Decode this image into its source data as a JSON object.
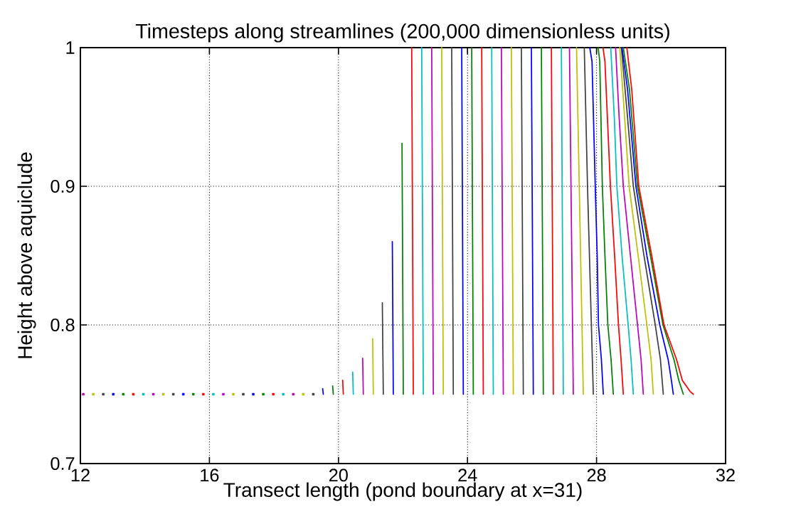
{
  "chart_data": {
    "type": "line",
    "title": "Timesteps along streamlines (200,000 dimensionless units)",
    "xlabel": "Transect length (pond boundary at x=31)",
    "ylabel": "Height above aquiclude",
    "xlim": [
      12,
      32
    ],
    "ylim": [
      0.7,
      1
    ],
    "xticks": [
      12,
      16,
      20,
      24,
      28,
      32
    ],
    "yticks": [
      0.7,
      0.8,
      0.9,
      1
    ],
    "grid": true,
    "line_style": "solid",
    "series": [
      {
        "type": "scatter",
        "marker": "square",
        "x": [
          12.09,
          12.4,
          12.71,
          13.02,
          13.33,
          13.64,
          13.95,
          14.26,
          14.57,
          14.88,
          15.19,
          15.5,
          15.81,
          16.12,
          16.43,
          16.74,
          17.05,
          17.36,
          17.67,
          17.98,
          18.29,
          18.6,
          18.91,
          19.22
        ],
        "values": [
          0.75,
          0.75,
          0.75,
          0.75,
          0.75,
          0.75,
          0.75,
          0.75,
          0.75,
          0.75,
          0.75,
          0.75,
          0.75,
          0.75,
          0.75,
          0.75,
          0.75,
          0.75,
          0.75,
          0.75,
          0.75,
          0.75,
          0.75,
          0.75
        ],
        "colors": [
          "#bf00bf",
          "#bfbf00",
          "#404040",
          "#0000ff",
          "#008000",
          "#ff0000",
          "#00bfbf",
          "#bf00bf",
          "#bfbf00",
          "#404040",
          "#0000ff",
          "#008000",
          "#ff0000",
          "#00bfbf",
          "#bf00bf",
          "#bfbf00",
          "#404040",
          "#0000ff",
          "#008000",
          "#ff0000",
          "#00bfbf",
          "#bf00bf",
          "#bfbf00",
          "#404040"
        ]
      },
      {
        "color": "#0000ff",
        "x": [
          19.53,
          19.51
        ],
        "values": [
          0.75,
          0.754
        ]
      },
      {
        "color": "#008000",
        "x": [
          19.84,
          19.82
        ],
        "values": [
          0.75,
          0.756
        ]
      },
      {
        "color": "#ff0000",
        "x": [
          20.15,
          20.13
        ],
        "values": [
          0.75,
          0.76
        ]
      },
      {
        "color": "#00bfbf",
        "x": [
          20.46,
          20.44
        ],
        "values": [
          0.75,
          0.766
        ]
      },
      {
        "color": "#bf00bf",
        "x": [
          20.77,
          20.75
        ],
        "values": [
          0.75,
          0.776
        ]
      },
      {
        "color": "#bfbf00",
        "x": [
          21.08,
          21.06
        ],
        "values": [
          0.75,
          0.79
        ]
      },
      {
        "color": "#404040",
        "x": [
          21.39,
          21.36
        ],
        "values": [
          0.75,
          0.816
        ]
      },
      {
        "color": "#0000ff",
        "x": [
          21.7,
          21.67
        ],
        "values": [
          0.75,
          0.86
        ]
      },
      {
        "color": "#008000",
        "x": [
          22.01,
          21.97
        ],
        "values": [
          0.75,
          0.931
        ]
      },
      {
        "color": "#ff0000",
        "x": [
          22.32,
          22.27
        ],
        "values": [
          0.75,
          1
        ]
      },
      {
        "color": "#00bfbf",
        "x": [
          22.63,
          22.58
        ],
        "values": [
          0.75,
          1
        ]
      },
      {
        "color": "#bf00bf",
        "x": [
          22.94,
          22.89
        ],
        "values": [
          0.75,
          1
        ]
      },
      {
        "color": "#bfbf00",
        "x": [
          23.25,
          23.2
        ],
        "values": [
          0.75,
          1
        ]
      },
      {
        "color": "#404040",
        "x": [
          23.56,
          23.51
        ],
        "values": [
          0.75,
          1
        ]
      },
      {
        "color": "#0000ff",
        "x": [
          23.87,
          23.82
        ],
        "values": [
          0.75,
          1
        ]
      },
      {
        "color": "#008000",
        "x": [
          24.18,
          24.13
        ],
        "values": [
          0.75,
          1
        ]
      },
      {
        "color": "#ff0000",
        "x": [
          24.49,
          24.44
        ],
        "values": [
          0.75,
          1
        ]
      },
      {
        "color": "#00bfbf",
        "x": [
          24.8,
          24.75
        ],
        "values": [
          0.75,
          1
        ]
      },
      {
        "color": "#bf00bf",
        "x": [
          25.11,
          25.05
        ],
        "values": [
          0.75,
          1
        ]
      },
      {
        "color": "#bfbf00",
        "x": [
          25.42,
          25.36
        ],
        "values": [
          0.75,
          1
        ]
      },
      {
        "color": "#404040",
        "x": [
          25.73,
          25.67
        ],
        "values": [
          0.75,
          1
        ]
      },
      {
        "color": "#0000ff",
        "x": [
          26.04,
          25.98
        ],
        "values": [
          0.75,
          1
        ]
      },
      {
        "color": "#008000",
        "x": [
          26.35,
          26.29
        ],
        "values": [
          0.75,
          1
        ]
      },
      {
        "color": "#ff0000",
        "x": [
          26.66,
          26.6
        ],
        "values": [
          0.75,
          1
        ]
      },
      {
        "color": "#00bfbf",
        "x": [
          26.97,
          26.91
        ],
        "values": [
          0.75,
          1
        ]
      },
      {
        "color": "#bf00bf",
        "x": [
          27.28,
          27.16
        ],
        "values": [
          0.75,
          1
        ]
      },
      {
        "color": "#bfbf00",
        "x": [
          27.59,
          27.38
        ],
        "values": [
          0.75,
          1
        ]
      },
      {
        "color": "#404040",
        "x": [
          27.9,
          27.84,
          27.78,
          27.72,
          27.62
        ],
        "values": [
          0.75,
          0.8,
          0.85,
          0.9,
          1
        ]
      },
      {
        "color": "#0000ff",
        "x": [
          28.21,
          28.15,
          28.06,
          28.02,
          27.96,
          27.86,
          27.79
        ],
        "values": [
          0.75,
          0.775,
          0.8,
          0.85,
          0.9,
          0.99,
          1
        ]
      },
      {
        "color": "#008000",
        "x": [
          28.52,
          28.45,
          28.35,
          28.26,
          28.18,
          28.1,
          28.05
        ],
        "values": [
          0.75,
          0.775,
          0.8,
          0.85,
          0.9,
          0.99,
          1
        ]
      },
      {
        "color": "#ff0000",
        "x": [
          28.83,
          28.76,
          28.68,
          28.56,
          28.43,
          28.26,
          28.2
        ],
        "values": [
          0.75,
          0.775,
          0.8,
          0.85,
          0.9,
          0.99,
          1
        ]
      },
      {
        "color": "#00bfbf",
        "x": [
          29.14,
          29.07,
          28.98,
          28.79,
          28.63,
          28.55,
          28.44
        ],
        "values": [
          0.75,
          0.775,
          0.8,
          0.85,
          0.9,
          0.95,
          1
        ]
      },
      {
        "color": "#bf00bf",
        "x": [
          29.45,
          29.38,
          29.27,
          29.05,
          28.83,
          28.7,
          28.59
        ],
        "values": [
          0.75,
          0.775,
          0.8,
          0.85,
          0.9,
          0.95,
          1
        ]
      },
      {
        "color": "#bfbf00",
        "x": [
          29.76,
          29.69,
          29.56,
          29.29,
          29.01,
          28.87,
          28.72
        ],
        "values": [
          0.75,
          0.775,
          0.8,
          0.85,
          0.9,
          0.95,
          1
        ]
      },
      {
        "color": "#404040",
        "x": [
          30.07,
          29.98,
          29.82,
          29.47,
          29.14,
          28.96,
          28.77
        ],
        "values": [
          0.75,
          0.775,
          0.8,
          0.85,
          0.9,
          0.95,
          1
        ]
      },
      {
        "color": "#0000ff",
        "x": [
          30.38,
          30.32,
          30.22,
          29.96,
          29.56,
          29.22,
          28.96,
          28.79
        ],
        "values": [
          0.75,
          0.76,
          0.775,
          0.8,
          0.85,
          0.9,
          0.97,
          1
        ]
      },
      {
        "color": "#008000",
        "x": [
          30.69,
          30.55,
          30.4,
          30.06,
          29.67,
          29.27,
          29.02,
          28.83
        ],
        "values": [
          0.75,
          0.76,
          0.775,
          0.8,
          0.85,
          0.9,
          0.97,
          1
        ]
      },
      {
        "color": "#ff0000",
        "x": [
          31.0,
          30.9,
          30.66,
          30.48,
          30.09,
          29.71,
          29.31,
          29.09,
          28.94
        ],
        "values": [
          0.75,
          0.752,
          0.76,
          0.775,
          0.8,
          0.85,
          0.9,
          0.97,
          1
        ]
      }
    ]
  }
}
